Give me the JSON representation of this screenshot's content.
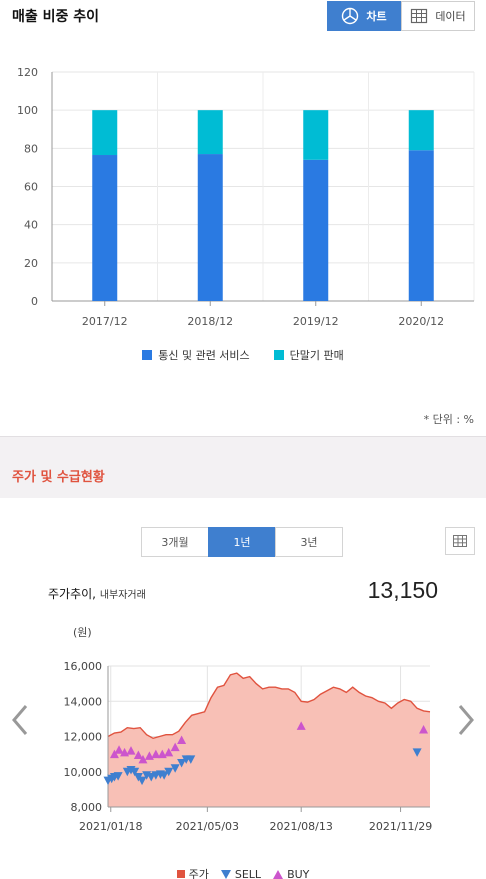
{
  "section1": {
    "title": "매출 비중 추이",
    "toggle": {
      "chart_label": "차트",
      "data_label": "데이터"
    },
    "unit_label": "* 단위 : %"
  },
  "section2": {
    "title": "주가 및 수급현황",
    "periods": [
      "3개월",
      "1년",
      "3년"
    ],
    "active_period": "1년",
    "price_label": "주가추이,",
    "price_sublabel": "내부자거래",
    "current_price": "13,150"
  },
  "colors": {
    "accent": "#3f7fcf",
    "series1": "#2a7ae2",
    "series2": "#00bcd4",
    "price_fill": "#f8c0b6",
    "price_line": "#e0533f",
    "sell": "#3f7fcf",
    "buy": "#cc55cc",
    "section_title": "#e0533f"
  },
  "icons": {
    "chart_toggle": "pie-chart-icon",
    "data_toggle": "table-grid-icon",
    "grid_button": "table-grid-icon",
    "nav_prev": "chevron-left-icon",
    "nav_next": "chevron-right-icon"
  },
  "chart_data": [
    {
      "type": "bar",
      "stacked": true,
      "categories": [
        "2017/12",
        "2018/12",
        "2019/12",
        "2020/12"
      ],
      "series": [
        {
          "name": "통신 및 관련 서비스",
          "values": [
            76.5,
            77.0,
            74.0,
            79.0
          ]
        },
        {
          "name": "단말기 판매",
          "values": [
            23.5,
            23.0,
            26.0,
            21.0
          ]
        }
      ],
      "ylim": [
        0,
        120
      ],
      "yticks": [
        0,
        20,
        40,
        60,
        80,
        100,
        120
      ],
      "grid": true,
      "legend": "bottom"
    },
    {
      "type": "area",
      "ylabel": "(원)",
      "ylim": [
        8000,
        16000
      ],
      "yticks": [
        "8,000",
        "10,000",
        "12,000",
        "14,000",
        "16,000"
      ],
      "ytick_values": [
        8000,
        10000,
        12000,
        14000,
        16000
      ],
      "xticks": [
        "2021/01/18",
        "2021/05/03",
        "2021/08/13",
        "2021/11/29"
      ],
      "xlim": [
        "2021/01/15",
        "2021/12/31"
      ],
      "grid": true,
      "legend": "bottom",
      "legend_labels": [
        "주가",
        "SELL",
        "BUY"
      ],
      "price": {
        "name": "주가",
        "dates": [
          "2021/01/15",
          "2021/01/22",
          "2021/01/29",
          "2021/02/05",
          "2021/02/12",
          "2021/02/19",
          "2021/02/26",
          "2021/03/05",
          "2021/03/12",
          "2021/03/19",
          "2021/03/26",
          "2021/04/02",
          "2021/04/09",
          "2021/04/16",
          "2021/04/23",
          "2021/04/30",
          "2021/05/07",
          "2021/05/14",
          "2021/05/21",
          "2021/05/28",
          "2021/06/04",
          "2021/06/11",
          "2021/06/18",
          "2021/06/25",
          "2021/07/02",
          "2021/07/09",
          "2021/07/16",
          "2021/07/23",
          "2021/07/30",
          "2021/08/06",
          "2021/08/13",
          "2021/08/20",
          "2021/08/27",
          "2021/09/03",
          "2021/09/10",
          "2021/09/17",
          "2021/09/24",
          "2021/10/01",
          "2021/10/08",
          "2021/10/15",
          "2021/10/22",
          "2021/10/29",
          "2021/11/05",
          "2021/11/12",
          "2021/11/19",
          "2021/11/26",
          "2021/12/03",
          "2021/12/10",
          "2021/12/17",
          "2021/12/24",
          "2021/12/31"
        ],
        "values": [
          12000,
          12200,
          12250,
          12500,
          12450,
          12500,
          12100,
          11900,
          12000,
          12100,
          12100,
          12300,
          12800,
          13200,
          13300,
          13400,
          14200,
          14800,
          14900,
          15500,
          15600,
          15300,
          15400,
          15000,
          14700,
          14800,
          14800,
          14700,
          14700,
          14500,
          14000,
          13950,
          14100,
          14400,
          14600,
          14800,
          14700,
          14500,
          14800,
          14500,
          14300,
          14200,
          14000,
          13900,
          13600,
          13900,
          14100,
          14000,
          13600,
          13450,
          13400
        ]
      },
      "sell": {
        "name": "SELL",
        "dates": [
          "2021/01/15",
          "2021/01/19",
          "2021/01/22",
          "2021/01/26",
          "2021/02/05",
          "2021/02/09",
          "2021/02/13",
          "2021/02/17",
          "2021/02/21",
          "2021/02/26",
          "2021/03/03",
          "2021/03/08",
          "2021/03/13",
          "2021/03/17",
          "2021/03/22",
          "2021/03/29",
          "2021/04/05",
          "2021/04/10",
          "2021/04/15",
          "2021/12/17"
        ],
        "values": [
          9500,
          9600,
          9700,
          9750,
          10000,
          10100,
          10000,
          9700,
          9500,
          9800,
          9700,
          9800,
          9850,
          9800,
          10000,
          10200,
          10500,
          10700,
          10700,
          11100
        ]
      },
      "buy": {
        "name": "BUY",
        "dates": [
          "2021/01/22",
          "2021/01/27",
          "2021/02/02",
          "2021/02/09",
          "2021/02/17",
          "2021/02/22",
          "2021/03/01",
          "2021/03/08",
          "2021/03/15",
          "2021/03/22",
          "2021/03/29",
          "2021/04/05",
          "2021/08/13",
          "2021/12/24"
        ],
        "values": [
          11000,
          11250,
          11100,
          11200,
          10950,
          10700,
          10900,
          11000,
          11000,
          11100,
          11400,
          11800,
          12600,
          12400
        ]
      }
    }
  ]
}
